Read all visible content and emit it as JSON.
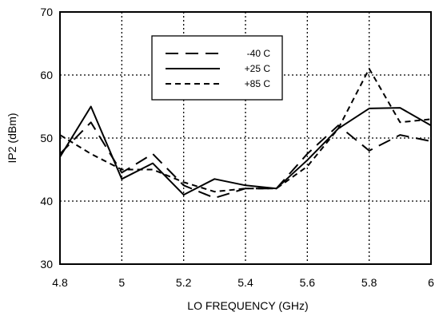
{
  "chart_data": {
    "type": "line",
    "title": "",
    "xlabel": "LO FREQUENCY (GHz)",
    "ylabel": "IP2 (dBm)",
    "xlim": [
      4.8,
      6.0
    ],
    "ylim": [
      30,
      70
    ],
    "xticks": [
      4.8,
      5.0,
      5.2,
      5.4,
      5.6,
      5.8,
      6.0
    ],
    "xtick_labels": [
      "4.8",
      "5",
      "5.2",
      "5.4",
      "5.6",
      "5.8",
      "6"
    ],
    "yticks": [
      30,
      40,
      50,
      60,
      70
    ],
    "ytick_labels": [
      "30",
      "40",
      "50",
      "60",
      "70"
    ],
    "grid": true,
    "legend_position": "top-center",
    "series": [
      {
        "name": "-40 C",
        "style": "long-dash",
        "x": [
          4.8,
          4.9,
          5.0,
          5.1,
          5.2,
          5.3,
          5.4,
          5.5,
          5.6,
          5.7,
          5.8,
          5.9,
          6.0
        ],
        "y": [
          47.5,
          52.5,
          44.5,
          47.5,
          42.5,
          40.5,
          42.0,
          42.0,
          47.5,
          52.0,
          48.0,
          50.5,
          49.5
        ]
      },
      {
        "name": "+25 C",
        "style": "solid",
        "x": [
          4.8,
          4.9,
          5.0,
          5.1,
          5.2,
          5.3,
          5.4,
          5.5,
          5.6,
          5.7,
          5.8,
          5.9,
          6.0
        ],
        "y": [
          47.0,
          55.0,
          43.5,
          46.0,
          41.0,
          43.5,
          42.5,
          42.0,
          46.5,
          51.5,
          54.7,
          54.8,
          52.0
        ]
      },
      {
        "name": "+85 C",
        "style": "short-dash",
        "x": [
          4.8,
          4.9,
          5.0,
          5.1,
          5.2,
          5.3,
          5.4,
          5.5,
          5.6,
          5.7,
          5.8,
          5.9,
          6.0
        ],
        "y": [
          50.5,
          47.5,
          45.0,
          45.0,
          43.0,
          41.5,
          42.0,
          42.0,
          45.5,
          51.5,
          61.0,
          52.5,
          53.0
        ]
      }
    ]
  }
}
